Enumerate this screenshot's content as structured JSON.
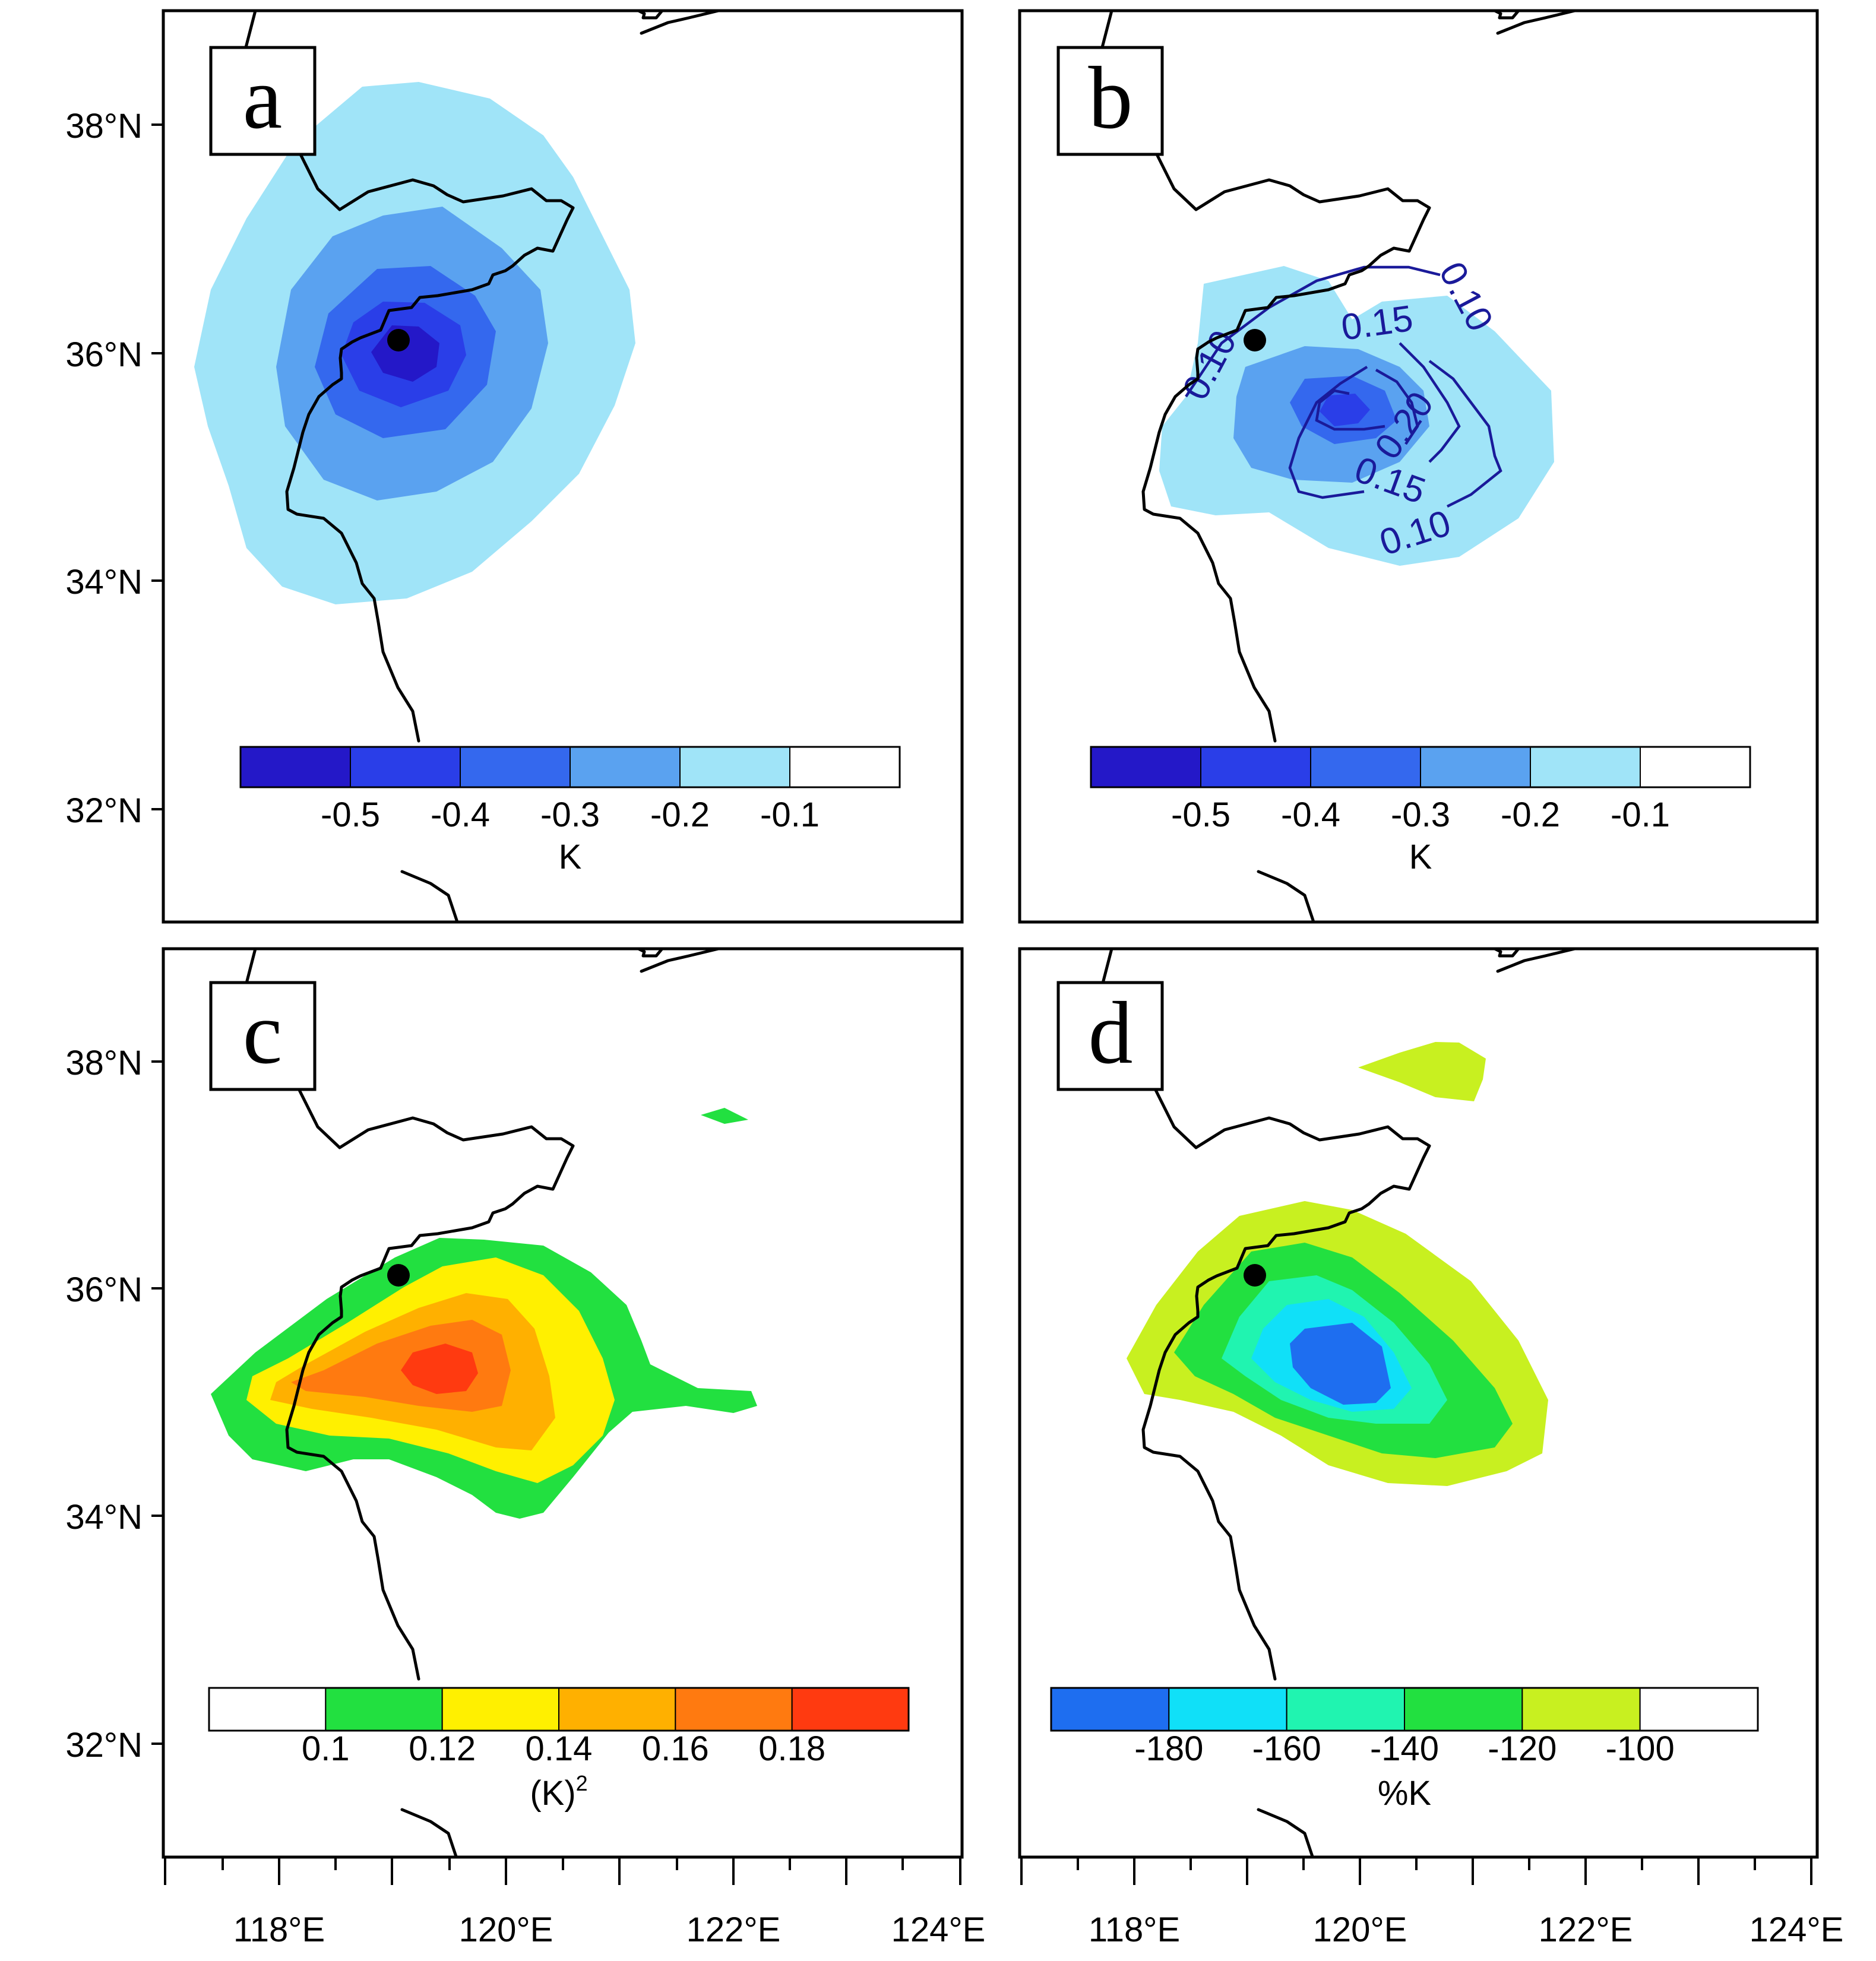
{
  "axes": {
    "lat_labels": [
      "38°N",
      "36°N",
      "34°N",
      "32°N"
    ],
    "lon_labels": [
      "118°E",
      "120°E",
      "122°E",
      "124°E"
    ]
  },
  "panels": [
    {
      "letter": "a",
      "colorbar": {
        "colors": [
          "#2418c8",
          "#2a3ee8",
          "#3468ee",
          "#5aa2f0",
          "#a0e4f8",
          "#ffffff"
        ],
        "tick_labels": [
          "-0.5",
          "-0.4",
          "-0.3",
          "-0.2",
          "-0.1"
        ],
        "unit": "K"
      }
    },
    {
      "letter": "b",
      "colorbar": {
        "colors": [
          "#2418c8",
          "#2a3ee8",
          "#3468ee",
          "#5aa2f0",
          "#a0e4f8",
          "#ffffff"
        ],
        "tick_labels": [
          "-0.5",
          "-0.4",
          "-0.3",
          "-0.2",
          "-0.1"
        ],
        "unit": "K"
      },
      "contour_labels": [
        "0.10",
        "0.15",
        "0.10",
        "0.20",
        "0.15",
        "0.10"
      ]
    },
    {
      "letter": "c",
      "colorbar": {
        "colors": [
          "#ffffff",
          "#22e040",
          "#fff000",
          "#ffb000",
          "#ff7a10",
          "#ff3a10"
        ],
        "tick_labels": [
          "0.1",
          "0.12",
          "0.14",
          "0.16",
          "0.18"
        ],
        "unit": "(K)",
        "unit_sup": "2"
      }
    },
    {
      "letter": "d",
      "colorbar": {
        "colors": [
          "#1e6ef0",
          "#10e0f8",
          "#20f4b0",
          "#22e040",
          "#c8f020",
          "#ffffff"
        ],
        "tick_labels": [
          "-180",
          "-160",
          "-140",
          "-120",
          "-100"
        ],
        "unit": "%K"
      }
    }
  ]
}
